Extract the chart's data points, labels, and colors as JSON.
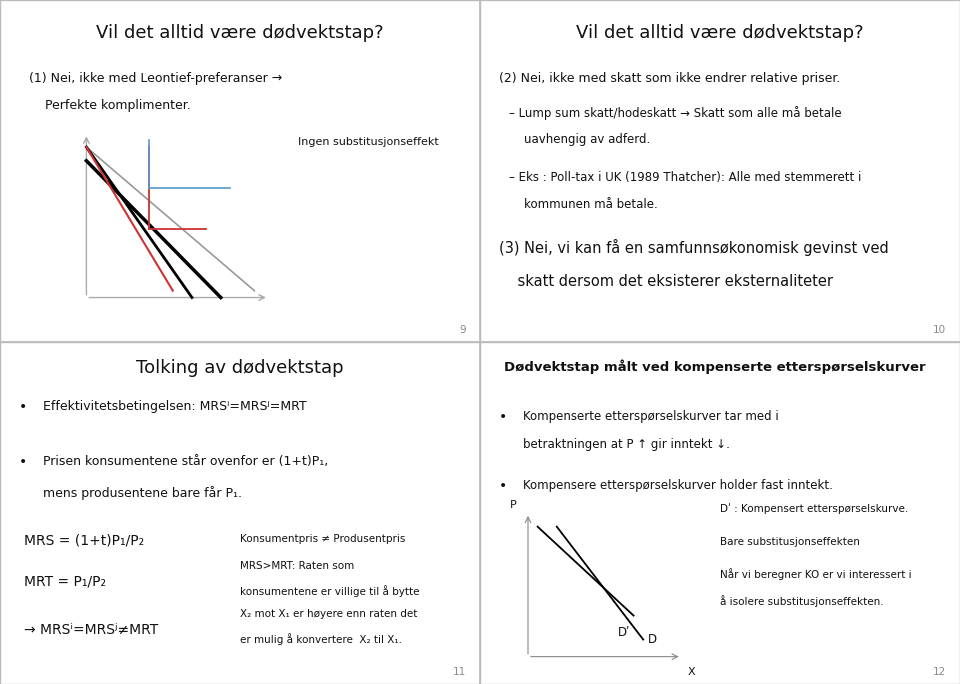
{
  "bg_color": "#ffffff",
  "slide_bg": "#ffffff",
  "divider_color": "#bbbbbb",
  "text_color": "#111111",
  "slide1": {
    "title": "Vil det alltid være dødvektstap?",
    "point_line1": "(1) Nei, ikke med Leontief-preferanser →",
    "point_line2": "    Perfekte komplimenter.",
    "graph_label": "Ingen substitusjonseffekt",
    "page": "9"
  },
  "slide2": {
    "title": "Vil det alltid være dødvektstap?",
    "point1": "(2) Nei, ikke med skatt som ikke endrer relative priser.",
    "bullet1_line1": "– Lump sum skatt/hodeskatt → Skatt som alle må betale",
    "bullet1_line2": "    uavhengig av adferd.",
    "bullet2_line1": "– Eks : Poll-tax i UK (1989 Thatcher): Alle med stemmerett i",
    "bullet2_line2": "    kommunen må betale.",
    "point2_line1": "(3) Nei, vi kan få en samfunnsøkonomisk gevinst ved",
    "point2_line2": "    skatt dersom det eksisterer eksternaliteter",
    "page": "10"
  },
  "slide3": {
    "title": "Tolking av dødvektstap",
    "bullet1": "Effektivitetsbetingelsen: MRSⁱ=MRSʲ=MRT",
    "bullet2_line1": "Prisen konsumentene står ovenfor er (1+t)P₁,",
    "bullet2_line2": "mens produsentene bare får P₁.",
    "eq1": "MRS = (1+t)P₁/P₂",
    "eq2": "MRT = P₁/P₂",
    "eq3": "→ MRSⁱ=MRSʲ≠MRT",
    "side_title": "Konsumentpris ≠ Produsentpris",
    "side_text_line1": "MRS>MRT: Raten som",
    "side_text_line2": "konsumentene er villige til å bytte",
    "side_text_line3": "X₂ mot X₁ er høyere enn raten det",
    "side_text_line4": "er mulig å konvertere  X₂ til X₁.",
    "page": "11"
  },
  "slide4": {
    "title": "Dødvektstap målt ved kompenserte etterspørselskurver",
    "bullet1_line1": "Kompenserte etterspørselskurver tar med i",
    "bullet1_line2": "betraktningen at P ↑ gir inntekt ↓.",
    "bullet2": "Kompensere etterspørselskurver holder fast inntekt.",
    "label_Dc_full": "Dʹ : Kompensert etterspørselskurve.",
    "side_text1": "Bare substitusjonseffekten",
    "side_text2_line1": "Når vi beregner KO er vi interessert i",
    "side_text2_line2": "å isolere substitusjonseffekten.",
    "xlabel": "X",
    "ylabel": "P",
    "page": "12"
  }
}
